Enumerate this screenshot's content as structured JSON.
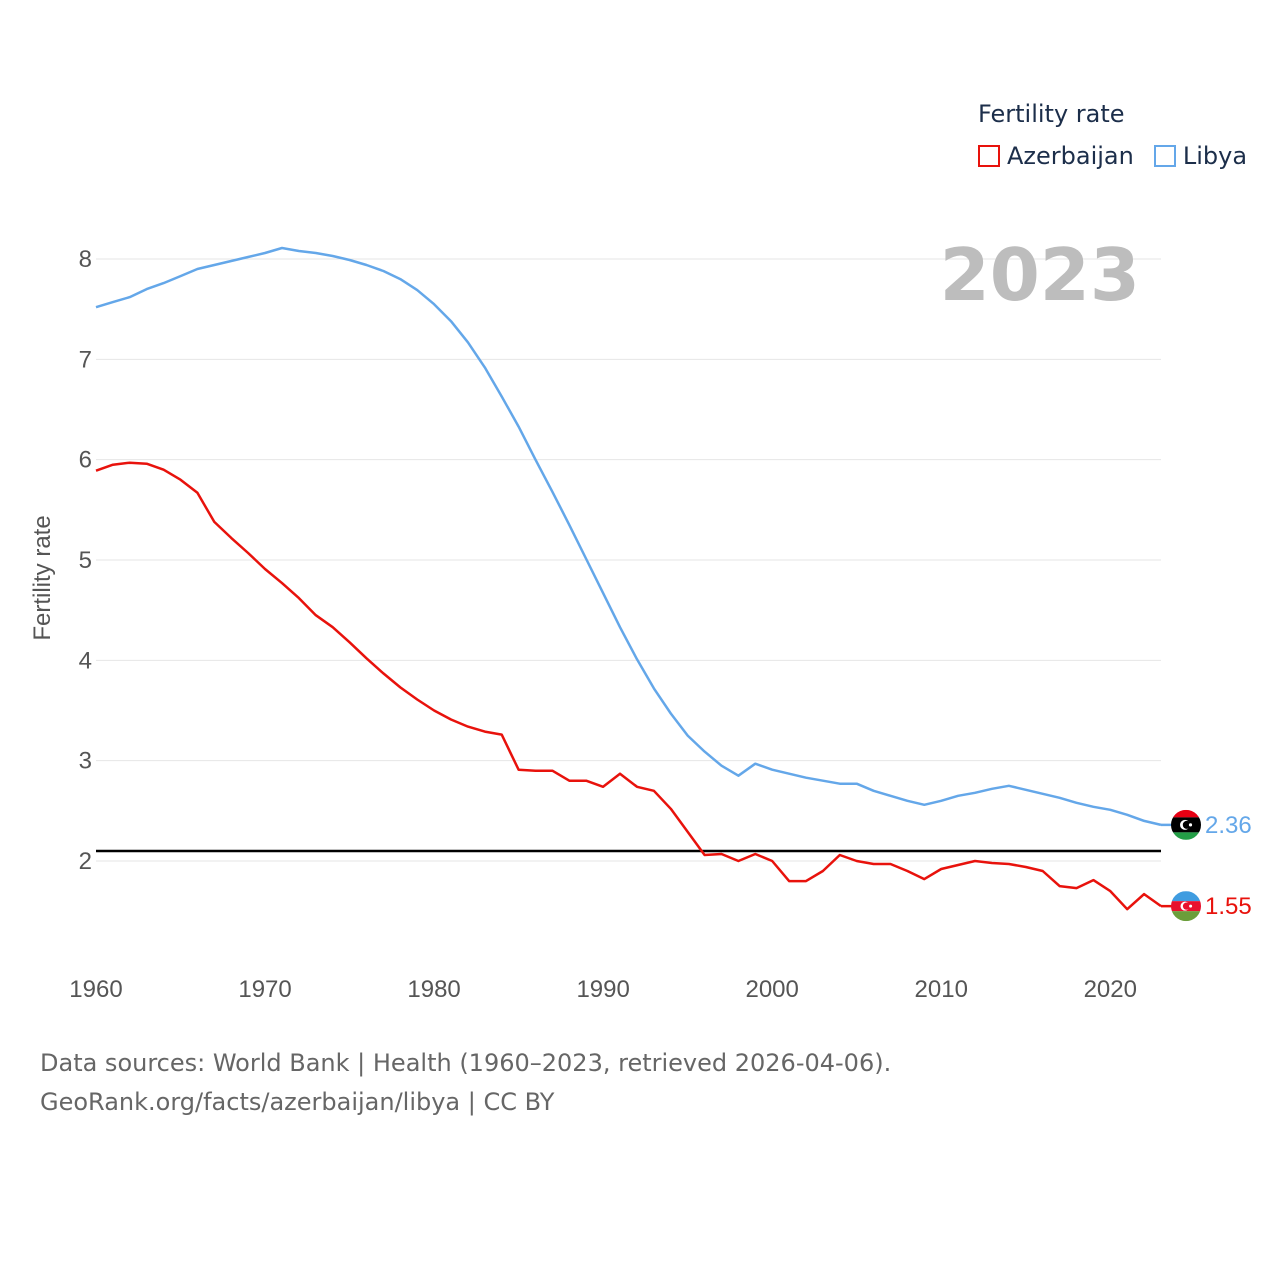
{
  "legend": {
    "title": "Fertility rate",
    "items": [
      {
        "label": "Azerbaijan",
        "color": "#e8120c"
      },
      {
        "label": "Libya",
        "color": "#64a7e9"
      }
    ]
  },
  "footer": {
    "line1": "Data sources: World Bank | Health (1960–2023, retrieved 2026-04-06).",
    "line2": "GeoRank.org/facts/azerbaijan/libya | CC BY"
  },
  "chart_data": {
    "type": "line",
    "title": "Fertility rate",
    "year_label": "2023",
    "xlabel": "",
    "ylabel": "Fertility rate",
    "xlim": [
      1960,
      2023
    ],
    "ylim": [
      1.0,
      8.4
    ],
    "x_ticks": [
      1960,
      1970,
      1980,
      1990,
      2000,
      2010,
      2020
    ],
    "y_ticks": [
      2,
      3,
      4,
      5,
      6,
      7,
      8
    ],
    "grid": true,
    "reference_line": 2.1,
    "x": [
      1960,
      1961,
      1962,
      1963,
      1964,
      1965,
      1966,
      1967,
      1968,
      1969,
      1970,
      1971,
      1972,
      1973,
      1974,
      1975,
      1976,
      1977,
      1978,
      1979,
      1980,
      1981,
      1982,
      1983,
      1984,
      1985,
      1986,
      1987,
      1988,
      1989,
      1990,
      1991,
      1992,
      1993,
      1994,
      1995,
      1996,
      1997,
      1998,
      1999,
      2000,
      2001,
      2002,
      2003,
      2004,
      2005,
      2006,
      2007,
      2008,
      2009,
      2010,
      2011,
      2012,
      2013,
      2014,
      2015,
      2016,
      2017,
      2018,
      2019,
      2020,
      2021,
      2022,
      2023
    ],
    "series": [
      {
        "name": "Azerbaijan",
        "color": "#e8120c",
        "end_label": "1.55",
        "values": [
          5.89,
          5.95,
          5.97,
          5.96,
          5.9,
          5.8,
          5.67,
          5.38,
          5.22,
          5.07,
          4.91,
          4.77,
          4.62,
          4.45,
          4.33,
          4.18,
          4.02,
          3.87,
          3.73,
          3.61,
          3.5,
          3.41,
          3.34,
          3.29,
          3.26,
          2.91,
          2.9,
          2.9,
          2.8,
          2.8,
          2.74,
          2.87,
          2.74,
          2.7,
          2.52,
          2.29,
          2.06,
          2.07,
          2.0,
          2.07,
          2.0,
          1.8,
          1.8,
          1.9,
          2.06,
          2.0,
          1.97,
          1.97,
          1.9,
          1.82,
          1.92,
          1.96,
          2.0,
          1.98,
          1.97,
          1.94,
          1.9,
          1.75,
          1.73,
          1.81,
          1.7,
          1.52,
          1.67,
          1.55
        ]
      },
      {
        "name": "Libya",
        "color": "#64a7e9",
        "end_label": "2.36",
        "values": [
          7.52,
          7.57,
          7.62,
          7.7,
          7.76,
          7.83,
          7.9,
          7.94,
          7.98,
          8.02,
          8.06,
          8.11,
          8.08,
          8.06,
          8.03,
          7.99,
          7.94,
          7.88,
          7.8,
          7.69,
          7.55,
          7.38,
          7.17,
          6.92,
          6.63,
          6.33,
          6.0,
          5.68,
          5.35,
          5.01,
          4.67,
          4.33,
          4.01,
          3.72,
          3.47,
          3.25,
          3.09,
          2.95,
          2.85,
          2.97,
          2.91,
          2.87,
          2.83,
          2.8,
          2.77,
          2.77,
          2.7,
          2.65,
          2.6,
          2.56,
          2.6,
          2.65,
          2.68,
          2.72,
          2.75,
          2.71,
          2.67,
          2.63,
          2.58,
          2.54,
          2.51,
          2.46,
          2.4,
          2.36
        ]
      }
    ]
  }
}
